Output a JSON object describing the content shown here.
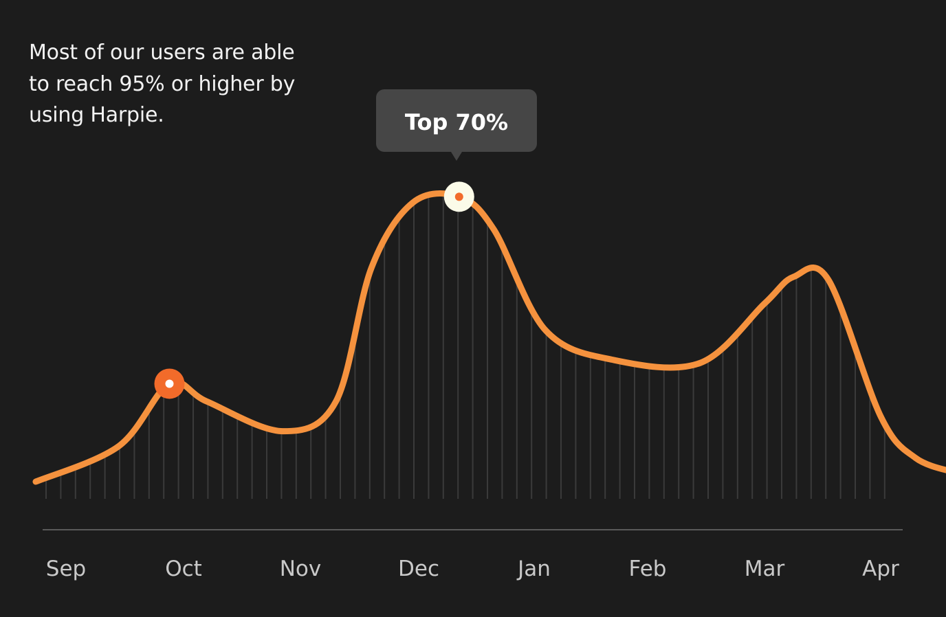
{
  "headline": "Most of our users are able to reach 95% or higher by using Harpie.",
  "tooltip": {
    "label": "Top 70%"
  },
  "colors": {
    "background": "#1c1c1c",
    "line": "#f5923e",
    "marker_accent": "#f26b2a",
    "marker_light": "#fbfbe8",
    "tooltip_bg": "#464646",
    "baseline": "#5a5a5a",
    "hatch": "#3a3a3a"
  },
  "chart_data": {
    "type": "area",
    "x_labels": [
      "Sep",
      "Oct",
      "Nov",
      "Dec",
      "Jan",
      "Feb",
      "Mar",
      "Apr"
    ],
    "grid": false,
    "ylim": [
      0,
      100
    ],
    "series": [
      {
        "points": [
          {
            "x": 0.0,
            "y": 3
          },
          {
            "x": 0.45,
            "y": 15
          },
          {
            "x": 0.88,
            "y": 36
          },
          {
            "x": 1.2,
            "y": 30
          },
          {
            "x": 1.85,
            "y": 20
          },
          {
            "x": 2.3,
            "y": 30
          },
          {
            "x": 2.6,
            "y": 75
          },
          {
            "x": 2.95,
            "y": 97
          },
          {
            "x": 3.35,
            "y": 99
          },
          {
            "x": 3.65,
            "y": 88
          },
          {
            "x": 4.1,
            "y": 54
          },
          {
            "x": 4.7,
            "y": 44
          },
          {
            "x": 5.45,
            "y": 43
          },
          {
            "x": 6.0,
            "y": 63
          },
          {
            "x": 6.25,
            "y": 72
          },
          {
            "x": 6.55,
            "y": 71
          },
          {
            "x": 7.0,
            "y": 25
          },
          {
            "x": 7.3,
            "y": 11
          },
          {
            "x": 7.65,
            "y": 6
          }
        ]
      }
    ],
    "highlights": [
      {
        "x": 0.88,
        "y": 36,
        "style": "orange"
      },
      {
        "x": 3.35,
        "y": 99,
        "style": "light",
        "label": "Top 70%"
      }
    ]
  }
}
